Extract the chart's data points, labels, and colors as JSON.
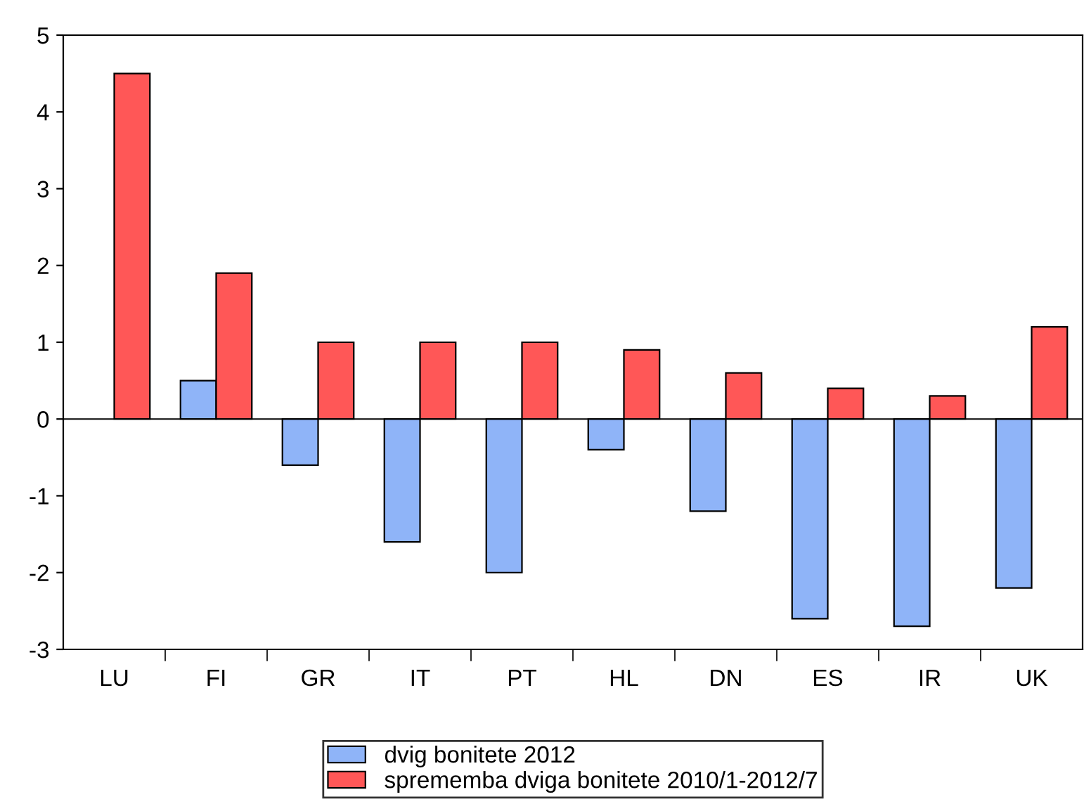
{
  "chart_data": {
    "type": "bar",
    "categories": [
      "LU",
      "FI",
      "GR",
      "IT",
      "PT",
      "HL",
      "DN",
      "ES",
      "IR",
      "UK"
    ],
    "series": [
      {
        "name": "dvig bonitete 2012",
        "color": "#8fb4f8",
        "values": [
          null,
          0.5,
          -0.6,
          -1.6,
          -2.0,
          -0.4,
          -1.2,
          -2.6,
          -2.7,
          -2.2
        ]
      },
      {
        "name": "sprememba dviga bonitete 2010/1-2012/7",
        "color": "#ff5757",
        "values": [
          4.5,
          1.9,
          1.0,
          1.0,
          1.0,
          0.9,
          0.6,
          0.4,
          0.3,
          1.2
        ]
      }
    ],
    "ylim": [
      -3,
      5
    ],
    "yticks": [
      -3,
      -2,
      -1,
      0,
      1,
      2,
      3,
      4,
      5
    ],
    "ref_lines": [
      {
        "axis": "y",
        "value": 0,
        "color": "#000000"
      }
    ],
    "grid": false,
    "legend": "bottom"
  }
}
